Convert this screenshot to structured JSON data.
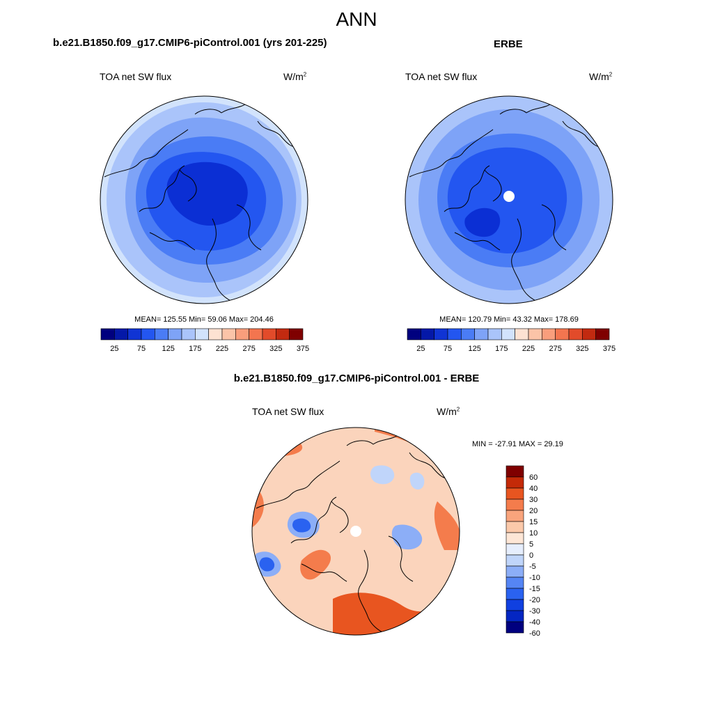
{
  "figure": {
    "title": "ANN"
  },
  "panels": [
    {
      "title": "b.e21.B1850.f09_g17.CMIP6-piControl.001 (yrs 201-225)",
      "variable": "TOA net SW flux",
      "units_base": "W/m",
      "units_exp": "2",
      "stats": "MEAN= 125.55  Min=  59.06  Max= 204.46",
      "pole_missing": false
    },
    {
      "title": "ERBE",
      "variable": "TOA net SW flux",
      "units_base": "W/m",
      "units_exp": "2",
      "stats": "MEAN= 120.79  Min=  43.32  Max= 178.69",
      "pole_missing": true
    },
    {
      "title": "b.e21.B1850.f09_g17.CMIP6-piControl.001 - ERBE",
      "variable": "TOA net SW flux",
      "units_base": "W/m",
      "units_exp": "2",
      "stats": "MIN = -27.91 MAX =  29.19",
      "pole_missing": true
    }
  ],
  "colorbar_abs": {
    "colors": [
      "#00007f",
      "#0418a8",
      "#1034d4",
      "#2356f0",
      "#4a7cf5",
      "#7ea3f7",
      "#aac4fa",
      "#d2e3fc",
      "#fde2d2",
      "#fbc4a8",
      "#f99e7c",
      "#f3754f",
      "#e24b2a",
      "#c22a10",
      "#7f0000"
    ],
    "labels": [
      "25",
      "75",
      "125",
      "175",
      "225",
      "275",
      "325",
      "375"
    ]
  },
  "colorbar_diff": {
    "colors": [
      "#00007f",
      "#0426c2",
      "#1040e0",
      "#2a62f0",
      "#5585f4",
      "#8caef7",
      "#c0d5fa",
      "#e6eefd",
      "#fde6d6",
      "#fbc9aa",
      "#f9a47c",
      "#f47c4c",
      "#e85520",
      "#c42a08",
      "#7f0000"
    ],
    "labels": [
      "60",
      "40",
      "30",
      "20",
      "15",
      "10",
      "5",
      "0",
      "-5",
      "-10",
      "-15",
      "-20",
      "-30",
      "-40",
      "-60"
    ]
  },
  "map_palette": {
    "deep": "#0b2fd4",
    "mid": "#2356f0",
    "light": "#4a7cf5",
    "pale": "#7ea3f7",
    "paler": "#aac4fa",
    "palest": "#d2e3fc",
    "diff_base": "#fbd4bc",
    "diff_warm": "#f47c4c",
    "diff_hot": "#e85520",
    "diff_cool": "#8caef7",
    "diff_cold": "#2a62f0"
  }
}
